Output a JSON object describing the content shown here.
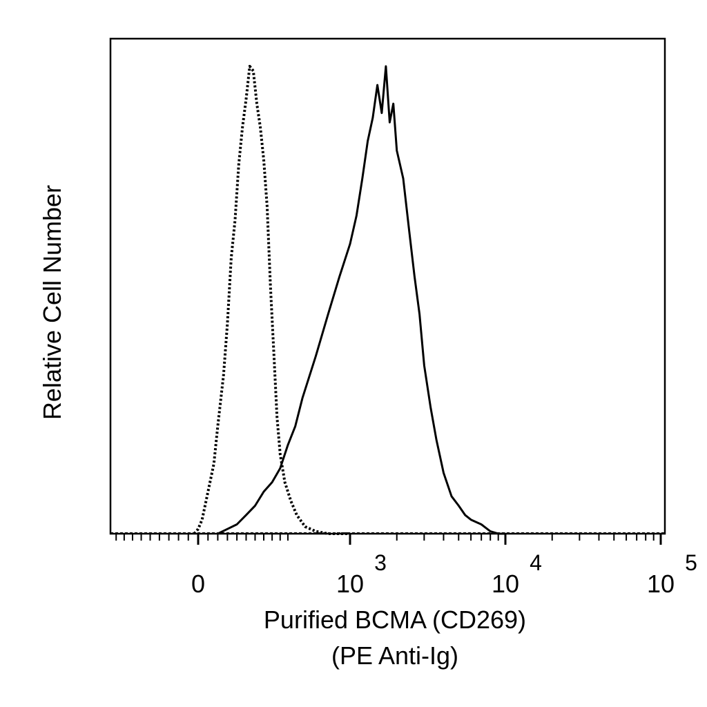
{
  "chart_data": {
    "type": "line",
    "title": "",
    "xlabel": "Purified BCMA (CD269)",
    "xlabel_line2": "(PE Anti-Ig)",
    "ylabel": "Relative Cell Number",
    "x_scale": "biexponential",
    "xlim": [
      -600,
      150000
    ],
    "ylim": [
      0,
      100
    ],
    "x_ticks": [
      {
        "value": 0,
        "base": "0",
        "exp": ""
      },
      {
        "value": 1000,
        "base": "10",
        "exp": "3"
      },
      {
        "value": 10000,
        "base": "10",
        "exp": "4"
      },
      {
        "value": 100000,
        "base": "10",
        "exp": "5"
      }
    ],
    "grid": false,
    "series": [
      {
        "style": "dotted",
        "x": [
          -20,
          0,
          20,
          50,
          80,
          100,
          130,
          150,
          170,
          190,
          210,
          230,
          250,
          270,
          290,
          310,
          330,
          350,
          370,
          390,
          410,
          430,
          450,
          480,
          520,
          560,
          620,
          700,
          800,
          900,
          1000
        ],
        "y": [
          0,
          1,
          3,
          9,
          15,
          23,
          34,
          45,
          59,
          67,
          79,
          87,
          93,
          100,
          99,
          92,
          87,
          80,
          70,
          53,
          39,
          25,
          17,
          11,
          7,
          4,
          1.5,
          0.5,
          0,
          0,
          0
        ]
      },
      {
        "style": "solid",
        "x": [
          100,
          150,
          200,
          250,
          300,
          350,
          400,
          450,
          500,
          550,
          600,
          700,
          800,
          900,
          1000,
          1100,
          1200,
          1300,
          1400,
          1500,
          1600,
          1700,
          1800,
          1900,
          2000,
          2200,
          2400,
          2600,
          2800,
          3000,
          3300,
          3600,
          4000,
          4500,
          5000,
          5500,
          6000,
          7000,
          8000,
          9000,
          10000
        ],
        "y": [
          0,
          1,
          2,
          4,
          6,
          9,
          11,
          14,
          19,
          23,
          29,
          38,
          47,
          55,
          62,
          68,
          76,
          84,
          89,
          96,
          90,
          100,
          88,
          92,
          82,
          76,
          65,
          55,
          47,
          36,
          27,
          20,
          13,
          8,
          6,
          4,
          3,
          2,
          0.5,
          0,
          0
        ]
      }
    ]
  }
}
